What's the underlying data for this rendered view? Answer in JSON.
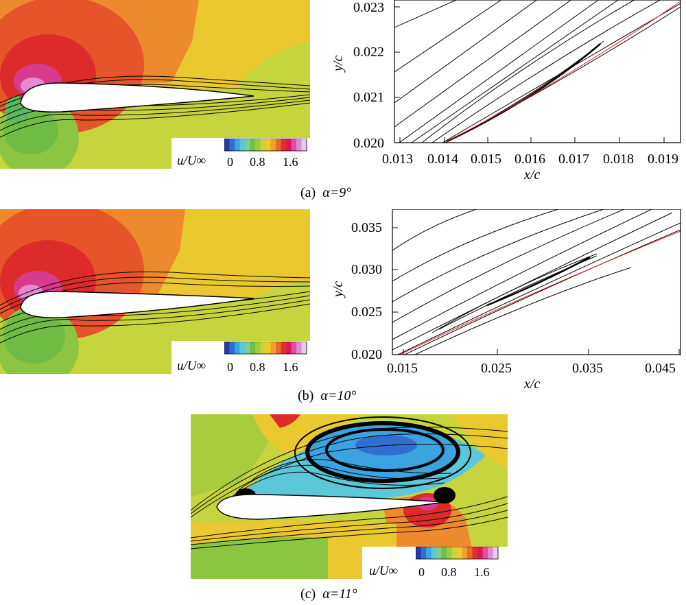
{
  "panels": [
    {
      "id": "a",
      "caption_label": "(a)",
      "caption_alpha": "α=9°",
      "legend": {
        "label": "u/U∞",
        "ticks": [
          "0",
          "0.8",
          "1.6"
        ]
      },
      "zoom": {
        "xlabel": "x/c",
        "ylabel": "y/c",
        "xticks": [
          "0.013",
          "0.014",
          "0.015",
          "0.016",
          "0.017",
          "0.018",
          "0.019"
        ],
        "yticks": [
          "0.020",
          "0.021",
          "0.022",
          "0.023"
        ]
      }
    },
    {
      "id": "b",
      "caption_label": "(b)",
      "caption_alpha": "α=10°",
      "legend": {
        "label": "u/U∞",
        "ticks": [
          "0",
          "0.8",
          "1.6"
        ]
      },
      "zoom": {
        "xlabel": "x/c",
        "ylabel": "y/c",
        "xticks": [
          "0.015",
          "0.025",
          "0.035",
          "0.045"
        ],
        "yticks": [
          "0.020",
          "0.025",
          "0.030",
          "0.035"
        ]
      }
    },
    {
      "id": "c",
      "caption_label": "(c)",
      "caption_alpha": "α=11°",
      "legend": {
        "label": "u/U∞",
        "ticks": [
          "0",
          "0.8",
          "1.6"
        ]
      }
    }
  ],
  "colorbar": [
    "#1f3ea8",
    "#2f6fcf",
    "#3aa3e0",
    "#5bc7d9",
    "#7fcf8a",
    "#6cbf4a",
    "#9fcc3c",
    "#c9d53a",
    "#f0c928",
    "#f0a230",
    "#ea6a2a",
    "#e0302a",
    "#d61a5a",
    "#e44aa0",
    "#d98fd0",
    "#e9c9ea"
  ],
  "colors": {
    "light_green": "#c5d53c",
    "yellow": "#ecc830",
    "orange": "#ee8a30",
    "red_orange": "#e5542a",
    "red": "#dc2b2a",
    "pink": "#d83a8e",
    "green": "#6ebc44",
    "mid_green": "#8cc540",
    "streamline": "#000000",
    "wall": "#e02020"
  }
}
